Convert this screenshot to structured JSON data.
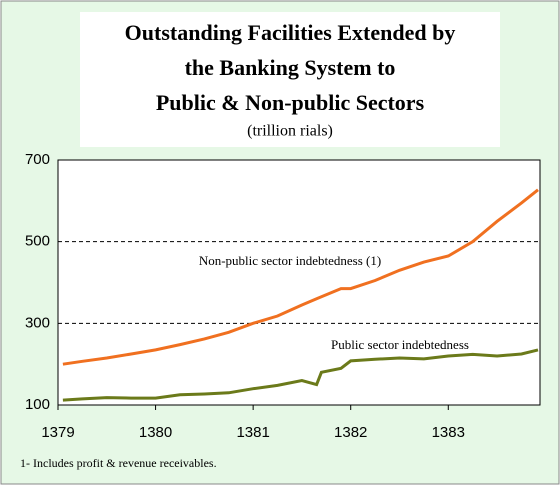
{
  "chart_data": {
    "type": "line",
    "title": [
      "Outstanding Facilities Extended by",
      "the Banking System to",
      "Public & Non-public Sectors"
    ],
    "subtitle": "(trillion rials)",
    "footnote": "1- Includes profit & revenue receivables.",
    "x": [
      1379.05,
      1379.25,
      1379.5,
      1379.75,
      1380,
      1380.25,
      1380.5,
      1380.75,
      1381,
      1381.25,
      1381.5,
      1381.65,
      1381.7,
      1381.9,
      1382,
      1382.25,
      1382.5,
      1382.75,
      1383,
      1383.25,
      1383.5,
      1383.75,
      1383.92
    ],
    "series": [
      {
        "name": "Non-public sector indebtedness (1)",
        "color": "#f07020",
        "values": [
          200,
          207,
          215,
          225,
          235,
          248,
          262,
          278,
          300,
          318,
          345,
          360,
          365,
          385,
          385,
          405,
          430,
          450,
          465,
          500,
          550,
          595,
          627
        ]
      },
      {
        "name": "Public sector indebtedness",
        "color": "#6b7a1a",
        "values": [
          112,
          115,
          118,
          117,
          117,
          125,
          127,
          130,
          140,
          148,
          160,
          150,
          180,
          190,
          208,
          212,
          215,
          213,
          220,
          224,
          220,
          225,
          235
        ]
      }
    ],
    "xlim": [
      1379,
      1383.94
    ],
    "xticks": [
      1379,
      1380,
      1381,
      1382,
      1383
    ],
    "ylim": [
      100,
      700
    ],
    "yticks": [
      100,
      300,
      500,
      700
    ],
    "grid": true
  }
}
